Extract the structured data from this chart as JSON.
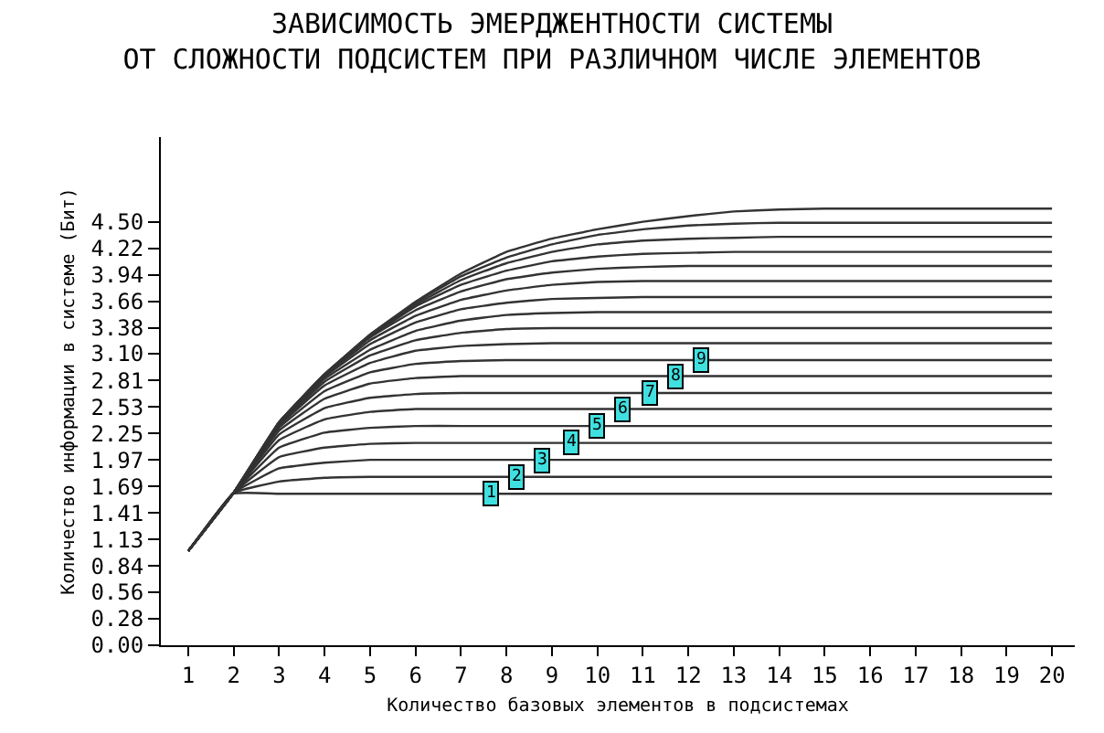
{
  "chart_data": {
    "type": "line",
    "title": "ЗАВИСИМОСТЬ ЭМЕРДЖЕНТНОСТИ СИСТЕМЫ\nОТ СЛОЖНОСТИ ПОДСИСТЕМ ПРИ РАЗЛИЧНОМ ЧИСЛЕ ЭЛЕМЕНТОВ",
    "xlabel": "Количество базовых элементов в подсистемах",
    "ylabel": "Количество информации в системе (Бит)",
    "x": [
      1,
      2,
      3,
      4,
      5,
      6,
      7,
      8,
      9,
      10,
      11,
      12,
      13,
      14,
      15,
      16,
      17,
      18,
      19,
      20
    ],
    "series": [
      {
        "color": "#333333",
        "values": [
          1.0,
          1.61,
          1.61,
          1.61,
          1.61,
          1.61,
          1.61,
          1.61,
          1.61,
          1.61,
          1.61,
          1.61,
          1.61,
          1.61,
          1.61,
          1.61,
          1.61,
          1.61,
          1.61,
          1.61
        ]
      },
      {
        "color": "#333333",
        "values": [
          1.0,
          1.62,
          1.74,
          1.78,
          1.79,
          1.79,
          1.79,
          1.79,
          1.79,
          1.79,
          1.79,
          1.79,
          1.79,
          1.79,
          1.79,
          1.79,
          1.79,
          1.79,
          1.79,
          1.79
        ]
      },
      {
        "color": "#333333",
        "values": [
          1.0,
          1.62,
          1.88,
          1.94,
          1.97,
          1.97,
          1.97,
          1.97,
          1.97,
          1.97,
          1.97,
          1.97,
          1.97,
          1.97,
          1.97,
          1.97,
          1.97,
          1.97,
          1.97,
          1.97
        ]
      },
      {
        "color": "#333333",
        "values": [
          1.0,
          1.62,
          2.0,
          2.1,
          2.14,
          2.15,
          2.15,
          2.15,
          2.15,
          2.15,
          2.15,
          2.15,
          2.15,
          2.15,
          2.15,
          2.15,
          2.15,
          2.15,
          2.15,
          2.15
        ]
      },
      {
        "color": "#333333",
        "values": [
          1.0,
          1.62,
          2.1,
          2.26,
          2.31,
          2.33,
          2.33,
          2.33,
          2.33,
          2.33,
          2.33,
          2.33,
          2.33,
          2.33,
          2.33,
          2.33,
          2.33,
          2.33,
          2.33,
          2.33
        ]
      },
      {
        "color": "#333333",
        "values": [
          1.0,
          1.62,
          2.18,
          2.4,
          2.48,
          2.51,
          2.51,
          2.51,
          2.51,
          2.51,
          2.51,
          2.51,
          2.51,
          2.51,
          2.51,
          2.51,
          2.51,
          2.51,
          2.51,
          2.51
        ]
      },
      {
        "color": "#333333",
        "values": [
          1.0,
          1.62,
          2.24,
          2.52,
          2.63,
          2.67,
          2.68,
          2.68,
          2.68,
          2.68,
          2.68,
          2.68,
          2.68,
          2.68,
          2.68,
          2.68,
          2.68,
          2.68,
          2.68,
          2.68
        ]
      },
      {
        "color": "#333333",
        "values": [
          1.0,
          1.62,
          2.28,
          2.62,
          2.78,
          2.84,
          2.86,
          2.86,
          2.86,
          2.86,
          2.86,
          2.86,
          2.86,
          2.86,
          2.86,
          2.86,
          2.86,
          2.86,
          2.86,
          2.86
        ]
      },
      {
        "color": "#333333",
        "values": [
          1.0,
          1.62,
          2.31,
          2.7,
          2.9,
          2.99,
          3.02,
          3.03,
          3.03,
          3.03,
          3.03,
          3.03,
          3.03,
          3.03,
          3.03,
          3.03,
          3.03,
          3.03,
          3.03,
          3.03
        ]
      },
      {
        "color": "#333333",
        "values": [
          1.0,
          1.62,
          2.33,
          2.76,
          3.0,
          3.13,
          3.18,
          3.2,
          3.21,
          3.21,
          3.21,
          3.21,
          3.21,
          3.21,
          3.21,
          3.21,
          3.21,
          3.21,
          3.21,
          3.21
        ]
      },
      {
        "color": "#333333",
        "values": [
          1.0,
          1.62,
          2.34,
          2.8,
          3.08,
          3.24,
          3.32,
          3.36,
          3.37,
          3.37,
          3.37,
          3.37,
          3.37,
          3.37,
          3.37,
          3.37,
          3.37,
          3.37,
          3.37,
          3.37
        ]
      },
      {
        "color": "#333333",
        "values": [
          1.0,
          1.62,
          2.35,
          2.83,
          3.14,
          3.34,
          3.45,
          3.51,
          3.53,
          3.54,
          3.54,
          3.54,
          3.54,
          3.54,
          3.54,
          3.54,
          3.54,
          3.54,
          3.54,
          3.54
        ]
      },
      {
        "color": "#333333",
        "values": [
          1.0,
          1.62,
          2.36,
          2.85,
          3.2,
          3.43,
          3.57,
          3.64,
          3.68,
          3.69,
          3.7,
          3.7,
          3.7,
          3.7,
          3.7,
          3.7,
          3.7,
          3.7,
          3.7,
          3.7
        ]
      },
      {
        "color": "#333333",
        "values": [
          1.0,
          1.62,
          2.36,
          2.86,
          3.24,
          3.5,
          3.67,
          3.77,
          3.83,
          3.86,
          3.87,
          3.87,
          3.87,
          3.87,
          3.87,
          3.87,
          3.87,
          3.87,
          3.87,
          3.87
        ]
      },
      {
        "color": "#333333",
        "values": [
          1.0,
          1.62,
          2.37,
          2.87,
          3.27,
          3.56,
          3.76,
          3.89,
          3.96,
          4.0,
          4.02,
          4.03,
          4.03,
          4.03,
          4.03,
          4.03,
          4.03,
          4.03,
          4.03,
          4.03
        ]
      },
      {
        "color": "#333333",
        "values": [
          1.0,
          1.62,
          2.37,
          2.87,
          3.28,
          3.6,
          3.83,
          3.98,
          4.08,
          4.13,
          4.16,
          4.17,
          4.18,
          4.18,
          4.18,
          4.18,
          4.18,
          4.18,
          4.18,
          4.18
        ]
      },
      {
        "color": "#333333",
        "values": [
          1.0,
          1.62,
          2.37,
          2.88,
          3.29,
          3.62,
          3.88,
          4.06,
          4.18,
          4.26,
          4.3,
          4.32,
          4.33,
          4.34,
          4.34,
          4.34,
          4.34,
          4.34,
          4.34,
          4.34
        ]
      },
      {
        "color": "#333333",
        "values": [
          1.0,
          1.62,
          2.37,
          2.88,
          3.3,
          3.64,
          3.92,
          4.12,
          4.26,
          4.36,
          4.42,
          4.46,
          4.48,
          4.49,
          4.49,
          4.49,
          4.49,
          4.49,
          4.49,
          4.49
        ]
      },
      {
        "color": "#333333",
        "values": [
          1.0,
          1.62,
          2.37,
          2.88,
          3.3,
          3.65,
          3.95,
          4.18,
          4.32,
          4.42,
          4.5,
          4.56,
          4.61,
          4.63,
          4.64,
          4.64,
          4.64,
          4.64,
          4.64,
          4.64
        ]
      }
    ],
    "xlim": [
      0.4,
      20.5
    ],
    "ylim": [
      0,
      5.4
    ],
    "xticks": [
      1,
      2,
      3,
      4,
      5,
      6,
      7,
      8,
      9,
      10,
      11,
      12,
      13,
      14,
      15,
      16,
      17,
      18,
      19,
      20
    ],
    "yticks": [
      {
        "value": 0,
        "label": "0.00"
      },
      {
        "value": 0.28125,
        "label": "0.28"
      },
      {
        "value": 0.5625,
        "label": "0.56"
      },
      {
        "value": 0.84375,
        "label": "0.84"
      },
      {
        "value": 1.125,
        "label": "1.13"
      },
      {
        "value": 1.40625,
        "label": "1.41"
      },
      {
        "value": 1.6875,
        "label": "1.69"
      },
      {
        "value": 1.96875,
        "label": "1.97"
      },
      2.25,
      {
        "value": 2.53125,
        "label": "2.53"
      },
      {
        "value": 2.8125,
        "label": "2.81"
      },
      {
        "value": 3.1,
        "label": "3.10"
      },
      {
        "value": 3.375,
        "label": "3.38"
      },
      {
        "value": 3.65625,
        "label": "3.66"
      },
      {
        "value": 3.9375,
        "label": "3.94"
      },
      {
        "value": 4.21875,
        "label": "4.22"
      },
      {
        "value": 4.5,
        "label": "4.50"
      }
    ],
    "annotations": [
      {
        "text": "1",
        "x": 7.67,
        "y": 1.61
      },
      {
        "text": "2",
        "x": 8.23,
        "y": 1.79
      },
      {
        "text": "3",
        "x": 8.8,
        "y": 1.97
      },
      {
        "text": "4",
        "x": 9.43,
        "y": 2.15
      },
      {
        "text": "5",
        "x": 10.0,
        "y": 2.33
      },
      {
        "text": "6",
        "x": 10.56,
        "y": 2.51
      },
      {
        "text": "7",
        "x": 11.16,
        "y": 2.68
      },
      {
        "text": "8",
        "x": 11.72,
        "y": 2.86
      },
      {
        "text": "9",
        "x": 12.28,
        "y": 3.03
      }
    ]
  }
}
